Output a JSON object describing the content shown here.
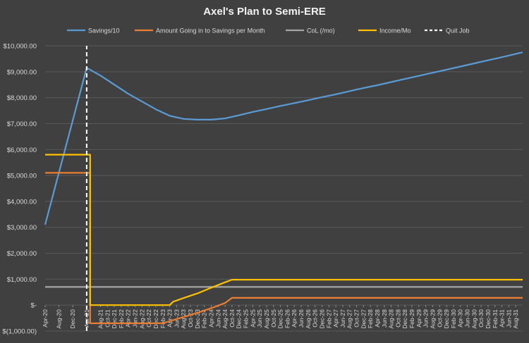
{
  "chart_data": {
    "type": "line",
    "title": "Axel's Plan to Semi-ERE",
    "xlabel": "",
    "ylabel": "",
    "ylim": [
      -1000,
      10000
    ],
    "ytick_labels": [
      "$(1,000.00)",
      "$-",
      "$1,000.00",
      "$2,000.00",
      "$3,000.00",
      "$4,000.00",
      "$5,000.00",
      "$6,000.00",
      "$7,000.00",
      "$8,000.00",
      "$9,000.00",
      "$10,000.00"
    ],
    "ytick_values": [
      -1000,
      0,
      1000,
      2000,
      3000,
      4000,
      5000,
      6000,
      7000,
      8000,
      9000,
      10000
    ],
    "x_start": "Apr-20",
    "x_end": "Oct-31",
    "xtick_labels": [
      "Apr-20",
      "Aug-20",
      "Dec-20",
      "Apr-21",
      "Aug-21",
      "Oct-21",
      "Dec-21",
      "Feb-22",
      "Apr-22",
      "Jun-22",
      "Aug-22",
      "Oct-22",
      "Dec-22",
      "Feb-23",
      "Apr-23",
      "Jun-23",
      "Aug-23",
      "Oct-23",
      "Dec-23",
      "Feb-24",
      "Apr-24",
      "Jun-24",
      "Aug-24",
      "Oct-24",
      "Dec-24",
      "Feb-25",
      "Apr-25",
      "Jun-25",
      "Aug-25",
      "Oct-25",
      "Dec-25",
      "Feb-26",
      "Apr-26",
      "Jun-26",
      "Aug-26",
      "Oct-26",
      "Dec-26",
      "Feb-27",
      "Apr-27",
      "Jun-27",
      "Aug-27",
      "Oct-27",
      "Dec-27",
      "Feb-28",
      "Apr-28",
      "Jun-28",
      "Aug-28",
      "Oct-28",
      "Dec-28",
      "Feb-29",
      "Apr-29",
      "Jun-29",
      "Aug-29",
      "Oct-29",
      "Dec-29",
      "Feb-30",
      "Apr-30",
      "Jun-30",
      "Aug-30",
      "Oct-30",
      "Dec-30",
      "Feb-31",
      "Apr-31",
      "Jun-31",
      "Aug-31"
    ],
    "visible_xticks": [
      "Apr-20",
      "Aug-20",
      "Dec-20",
      "Apr-21",
      "Aug-21",
      "Oct-21",
      "Dec-21",
      "Feb-22",
      "Apr-22",
      "Jun-22",
      "Aug-22",
      "Oct-22",
      "Dec-22",
      "Feb-23",
      "Apr-23",
      "Jun-23",
      "Aug-23",
      "Oct-23",
      "Dec-23",
      "Feb-24",
      "Apr-24",
      "Jun-24",
      "Aug-24",
      "Oct-24",
      "Dec-24",
      "Feb-25",
      "Apr-25",
      "Jun-25",
      "Aug-25",
      "Oct-25",
      "Dec-25",
      "Feb-26",
      "Apr-26",
      "Jun-26",
      "Aug-26",
      "Oct-26",
      "Dec-26",
      "Feb-27",
      "Apr-27",
      "Jun-27",
      "Aug-27",
      "Oct-27",
      "Dec-27",
      "Feb-28",
      "Apr-28",
      "Jun-28",
      "Aug-28",
      "Oct-28",
      "Dec-28",
      "Feb-29",
      "Apr-29",
      "Jun-29",
      "Aug-29",
      "Oct-29",
      "Dec-29",
      "Feb-30",
      "Apr-30",
      "Jun-30",
      "Aug-30",
      "Oct-30",
      "Dec-30",
      "Feb-31",
      "Apr-31",
      "Jun-31",
      "Aug-31"
    ],
    "legend_position": "top",
    "grid": true,
    "series": [
      {
        "name": "Savings/10",
        "color": "#5b9bd5",
        "points": [
          [
            "Apr-20",
            3100
          ],
          [
            "Apr-21",
            9150
          ],
          [
            "Aug-21",
            8850
          ],
          [
            "Dec-21",
            8500
          ],
          [
            "Apr-22",
            8150
          ],
          [
            "Aug-22",
            7850
          ],
          [
            "Dec-22",
            7550
          ],
          [
            "Apr-23",
            7300
          ],
          [
            "Aug-23",
            7180
          ],
          [
            "Dec-23",
            7150
          ],
          [
            "Apr-24",
            7150
          ],
          [
            "Aug-24",
            7200
          ],
          [
            "Dec-24",
            7320
          ],
          [
            "Apr-25",
            7450
          ],
          [
            "Aug-25",
            7560
          ],
          [
            "Dec-25",
            7680
          ],
          [
            "Apr-26",
            7790
          ],
          [
            "Aug-26",
            7900
          ],
          [
            "Dec-26",
            8020
          ],
          [
            "Apr-27",
            8130
          ],
          [
            "Aug-27",
            8250
          ],
          [
            "Dec-27",
            8370
          ],
          [
            "Apr-28",
            8480
          ],
          [
            "Aug-28",
            8600
          ],
          [
            "Dec-28",
            8720
          ],
          [
            "Apr-29",
            8840
          ],
          [
            "Aug-29",
            8960
          ],
          [
            "Dec-29",
            9080
          ],
          [
            "Apr-30",
            9200
          ],
          [
            "Aug-30",
            9320
          ],
          [
            "Dec-30",
            9440
          ],
          [
            "Apr-31",
            9560
          ],
          [
            "Oct-31",
            9750
          ]
        ]
      },
      {
        "name": "Amount Going in to Savings per Month",
        "color": "#ed7d31",
        "points": [
          [
            "Apr-20",
            5100
          ],
          [
            "May-21",
            5100
          ],
          [
            "May-21",
            -700
          ],
          [
            "Feb-23",
            -700
          ],
          [
            "Apr-23",
            -620
          ],
          [
            "Aug-23",
            -460
          ],
          [
            "Dec-23",
            -300
          ],
          [
            "Apr-24",
            -120
          ],
          [
            "Aug-24",
            80
          ],
          [
            "Oct-24",
            280
          ],
          [
            "Oct-31",
            280
          ]
        ]
      },
      {
        "name": "CoL (/mo)",
        "color": "#a5a5a5",
        "points": [
          [
            "Apr-20",
            700
          ],
          [
            "Oct-31",
            700
          ]
        ]
      },
      {
        "name": "Income/Mo",
        "color": "#ffc000",
        "points": [
          [
            "Apr-20",
            5800
          ],
          [
            "May-21",
            5800
          ],
          [
            "May-21",
            0
          ],
          [
            "Apr-23",
            0
          ],
          [
            "May-23",
            130
          ],
          [
            "Aug-23",
            270
          ],
          [
            "Dec-23",
            450
          ],
          [
            "Apr-24",
            670
          ],
          [
            "Aug-24",
            880
          ],
          [
            "Oct-24",
            980
          ],
          [
            "Oct-31",
            980
          ]
        ]
      },
      {
        "name": "Quit Job",
        "color": "#ffffff",
        "dashed": true,
        "points": [
          [
            "Apr-21",
            -1000
          ],
          [
            "Apr-21",
            10000
          ]
        ]
      }
    ]
  }
}
